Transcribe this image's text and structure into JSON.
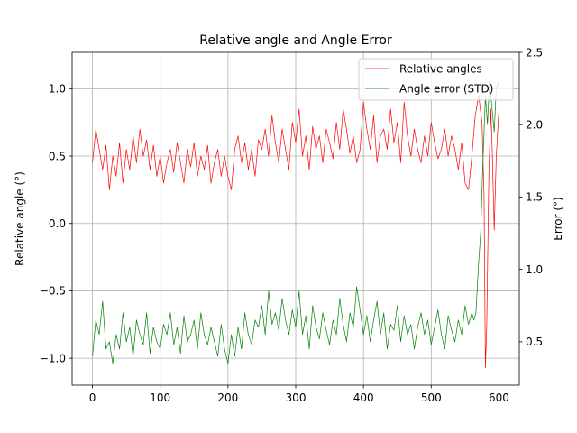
{
  "chart_data": {
    "type": "line",
    "title": "Relative angle and Angle Error",
    "xlabel": "",
    "ylabel_left": "Relative angle (°)",
    "ylabel_right": "Error (°)",
    "xlim": [
      -30,
      630
    ],
    "ylim_left": [
      -1.2,
      1.27
    ],
    "ylim_right": [
      0.2,
      2.5
    ],
    "x_ticks": [
      0,
      100,
      200,
      300,
      400,
      500,
      600
    ],
    "y_left_ticks": [
      -1.0,
      -0.5,
      0.0,
      0.5,
      1.0
    ],
    "y_left_tick_labels": [
      "−1.0",
      "−0.5",
      "0.0",
      "0.5",
      "1.0"
    ],
    "y_right_ticks": [
      0.5,
      1.0,
      1.5,
      2.0,
      2.5
    ],
    "y_right_tick_labels": [
      "0.5",
      "1.0",
      "1.5",
      "2.0",
      "2.5"
    ],
    "grid": true,
    "legend_position": "top-right",
    "colors": {
      "left_axis": "#ff0000",
      "right_axis": "#008000"
    },
    "series": [
      {
        "name": "Relative angles",
        "axis": "left",
        "color": "#ff0000",
        "x": [
          0,
          5,
          10,
          15,
          20,
          25,
          30,
          35,
          40,
          45,
          50,
          55,
          60,
          65,
          70,
          75,
          80,
          85,
          90,
          95,
          100,
          105,
          110,
          115,
          120,
          125,
          130,
          135,
          140,
          145,
          150,
          155,
          160,
          165,
          170,
          175,
          180,
          185,
          190,
          195,
          200,
          205,
          210,
          215,
          220,
          225,
          230,
          235,
          240,
          245,
          250,
          255,
          260,
          265,
          270,
          275,
          280,
          285,
          290,
          295,
          300,
          305,
          310,
          315,
          320,
          325,
          330,
          335,
          340,
          345,
          350,
          355,
          360,
          365,
          370,
          375,
          380,
          385,
          390,
          395,
          400,
          405,
          410,
          415,
          420,
          425,
          430,
          435,
          440,
          445,
          450,
          455,
          460,
          465,
          470,
          475,
          480,
          485,
          490,
          495,
          500,
          505,
          510,
          515,
          520,
          525,
          530,
          535,
          540,
          545,
          550,
          555,
          560,
          565,
          570,
          575,
          578,
          580,
          582,
          585,
          588,
          590,
          593,
          596,
          600
        ],
        "values": [
          0.45,
          0.7,
          0.55,
          0.4,
          0.58,
          0.25,
          0.5,
          0.35,
          0.6,
          0.3,
          0.55,
          0.4,
          0.65,
          0.45,
          0.7,
          0.5,
          0.62,
          0.4,
          0.58,
          0.35,
          0.5,
          0.3,
          0.45,
          0.55,
          0.38,
          0.6,
          0.45,
          0.3,
          0.55,
          0.42,
          0.6,
          0.35,
          0.5,
          0.4,
          0.58,
          0.3,
          0.45,
          0.55,
          0.35,
          0.5,
          0.35,
          0.25,
          0.55,
          0.65,
          0.45,
          0.6,
          0.4,
          0.55,
          0.35,
          0.62,
          0.55,
          0.7,
          0.5,
          0.8,
          0.6,
          0.45,
          0.7,
          0.55,
          0.4,
          0.75,
          0.6,
          0.85,
          0.5,
          0.65,
          0.4,
          0.72,
          0.55,
          0.65,
          0.45,
          0.7,
          0.6,
          0.48,
          0.75,
          0.55,
          0.85,
          0.7,
          0.52,
          0.65,
          0.45,
          0.55,
          0.9,
          0.7,
          0.55,
          0.8,
          0.45,
          0.65,
          0.7,
          0.55,
          0.85,
          0.6,
          0.75,
          0.45,
          0.9,
          0.65,
          0.5,
          0.7,
          0.55,
          0.45,
          0.65,
          0.5,
          0.75,
          0.6,
          0.48,
          0.55,
          0.7,
          0.5,
          0.65,
          0.55,
          0.4,
          0.6,
          0.3,
          0.25,
          0.5,
          0.8,
          0.95,
          0.75,
          0.2,
          -1.07,
          -0.75,
          0.35,
          0.85,
          0.55,
          -0.05,
          0.5,
          0.85
        ]
      },
      {
        "name": "Angle error (STD)",
        "axis": "right",
        "color": "#008000",
        "x": [
          0,
          5,
          10,
          15,
          20,
          25,
          30,
          35,
          40,
          45,
          50,
          55,
          60,
          65,
          70,
          75,
          80,
          85,
          90,
          95,
          100,
          105,
          110,
          115,
          120,
          125,
          130,
          135,
          140,
          145,
          150,
          155,
          160,
          165,
          170,
          175,
          180,
          185,
          190,
          195,
          200,
          205,
          210,
          215,
          220,
          225,
          230,
          235,
          240,
          245,
          250,
          255,
          260,
          265,
          270,
          275,
          280,
          285,
          290,
          295,
          300,
          305,
          310,
          315,
          320,
          325,
          330,
          335,
          340,
          345,
          350,
          355,
          360,
          365,
          370,
          375,
          380,
          385,
          390,
          395,
          400,
          405,
          410,
          415,
          420,
          425,
          430,
          435,
          440,
          445,
          450,
          455,
          460,
          465,
          470,
          475,
          480,
          485,
          490,
          495,
          500,
          505,
          510,
          515,
          520,
          525,
          530,
          535,
          540,
          545,
          550,
          555,
          560,
          563,
          566,
          570,
          573,
          576,
          580,
          583,
          586,
          590,
          593,
          596,
          600
        ],
        "values": [
          0.4,
          0.65,
          0.55,
          0.78,
          0.45,
          0.5,
          0.35,
          0.55,
          0.45,
          0.7,
          0.5,
          0.6,
          0.4,
          0.65,
          0.55,
          0.48,
          0.7,
          0.42,
          0.6,
          0.5,
          0.45,
          0.62,
          0.55,
          0.7,
          0.48,
          0.6,
          0.42,
          0.68,
          0.5,
          0.55,
          0.65,
          0.45,
          0.7,
          0.55,
          0.48,
          0.6,
          0.5,
          0.4,
          0.62,
          0.45,
          0.35,
          0.55,
          0.4,
          0.6,
          0.45,
          0.7,
          0.55,
          0.48,
          0.65,
          0.6,
          0.75,
          0.55,
          0.85,
          0.62,
          0.7,
          0.58,
          0.8,
          0.65,
          0.55,
          0.72,
          0.6,
          0.85,
          0.55,
          0.68,
          0.45,
          0.75,
          0.6,
          0.52,
          0.7,
          0.58,
          0.48,
          0.65,
          0.55,
          0.8,
          0.62,
          0.5,
          0.7,
          0.6,
          0.88,
          0.72,
          0.55,
          0.68,
          0.5,
          0.65,
          0.78,
          0.55,
          0.7,
          0.45,
          0.62,
          0.58,
          0.75,
          0.5,
          0.68,
          0.55,
          0.62,
          0.45,
          0.6,
          0.7,
          0.55,
          0.65,
          0.48,
          0.6,
          0.72,
          0.55,
          0.45,
          0.68,
          0.58,
          0.5,
          0.65,
          0.55,
          0.75,
          0.62,
          0.7,
          0.65,
          0.7,
          1.05,
          1.25,
          1.7,
          2.2,
          2.0,
          2.3,
          2.1,
          1.95,
          2.25,
          2.3
        ]
      }
    ]
  }
}
